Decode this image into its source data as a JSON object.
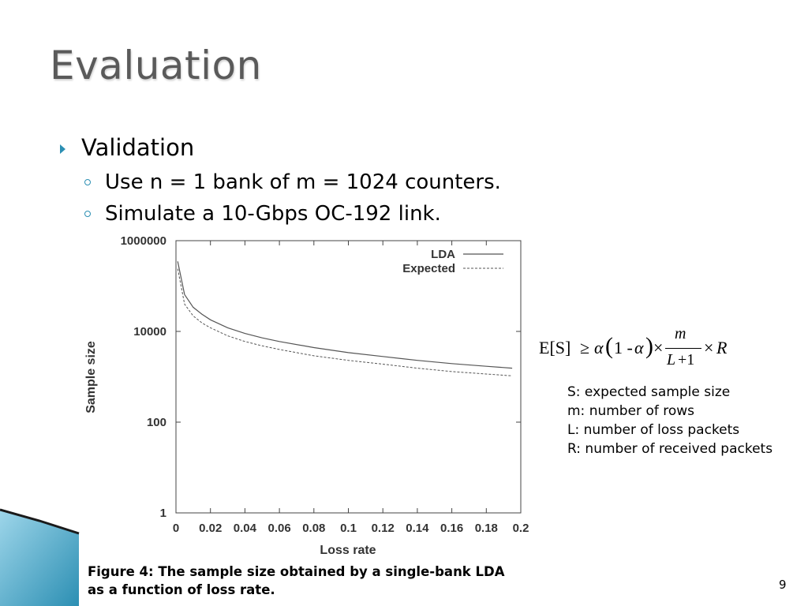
{
  "slide": {
    "title": "Evaluation",
    "page_number": "9"
  },
  "bullets": {
    "level1": "Validation",
    "level2": [
      "Use n = 1 bank of m = 1024 counters.",
      "Simulate a 10-Gbps OC-192 link."
    ]
  },
  "formula": {
    "lhs": "E[S]",
    "geq": "≥",
    "alpha": "α",
    "one_minus": "1 -",
    "alpha2": "α",
    "open_paren": "(",
    "close_paren": ")",
    "times1": "×",
    "numerator": "m",
    "denominator_L": "L",
    "denominator_rest": "+1",
    "times2": "×",
    "R": "R"
  },
  "definitions": [
    "S: expected sample size",
    "m: number of rows",
    "L: number of loss packets",
    "R: number of received packets"
  ],
  "caption": [
    "Figure 4: The sample size obtained by a single-bank LDA",
    "as a function of loss rate."
  ],
  "chart_data": {
    "type": "line",
    "xlabel": "Loss rate",
    "ylabel": "Sample size",
    "xlim": [
      0,
      0.2
    ],
    "ylim": [
      1,
      1000000
    ],
    "yscale": "log",
    "x_ticks": [
      0,
      0.02,
      0.04,
      0.06,
      0.08,
      0.1,
      0.12,
      0.14,
      0.16,
      0.18,
      0.2
    ],
    "x_tick_labels": [
      "0",
      "0.02",
      "0.04",
      "0.06",
      "0.08",
      "0.1",
      "0.12",
      "0.14",
      "0.16",
      "0.18",
      "0.2"
    ],
    "y_ticks": [
      1,
      100,
      10000,
      1000000
    ],
    "y_tick_labels": [
      "1",
      "100",
      "10000",
      "1000000"
    ],
    "grid": false,
    "legend_position": "top-right",
    "series": [
      {
        "name": "LDA",
        "style": "solid",
        "color": "#555555",
        "x": [
          0.001,
          0.005,
          0.01,
          0.015,
          0.02,
          0.03,
          0.04,
          0.05,
          0.06,
          0.08,
          0.1,
          0.12,
          0.14,
          0.16,
          0.18,
          0.195
        ],
        "y": [
          350000,
          65000,
          34000,
          24000,
          18000,
          12000,
          9000,
          7200,
          6000,
          4400,
          3400,
          2800,
          2300,
          1950,
          1700,
          1550
        ]
      },
      {
        "name": "Expected",
        "style": "dashed",
        "color": "#555555",
        "x": [
          0.001,
          0.005,
          0.01,
          0.015,
          0.02,
          0.03,
          0.04,
          0.05,
          0.06,
          0.08,
          0.1,
          0.12,
          0.14,
          0.16,
          0.18,
          0.195
        ],
        "y": [
          240000,
          40000,
          22000,
          15500,
          12000,
          8000,
          6000,
          4800,
          4000,
          2900,
          2300,
          1900,
          1550,
          1300,
          1150,
          1050
        ]
      }
    ]
  }
}
